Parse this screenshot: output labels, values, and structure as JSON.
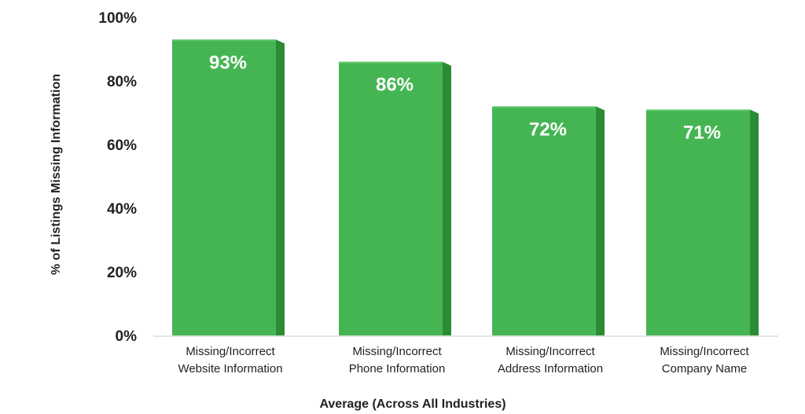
{
  "colors": {
    "bar_front": "#45b553",
    "bar_side": "#2c8c35",
    "bar_top": "#5ec66a",
    "axis_line": "#e3e3e3",
    "text": "#222222",
    "label_on_bar": "#ffffff"
  },
  "chart_data": {
    "type": "bar",
    "categories": [
      [
        "Missing/Incorrect",
        "Website Information"
      ],
      [
        "Missing/Incorrect",
        "Phone Information"
      ],
      [
        "Missing/Incorrect",
        "Address Information"
      ],
      [
        "Missing/Incorrect",
        "Company Name"
      ]
    ],
    "values": [
      93,
      86,
      72,
      71
    ],
    "data_labels": [
      "93%",
      "86%",
      "72%",
      "71%"
    ],
    "title": "",
    "xlabel": "Average (Across All Industries)",
    "ylabel": "% of Listings Missing Information",
    "ylim": [
      0,
      100
    ],
    "yticks": [
      0,
      20,
      40,
      60,
      80,
      100
    ],
    "ytick_labels": [
      "0%",
      "20%",
      "40%",
      "60%",
      "80%",
      "100%"
    ],
    "grid": false,
    "legend": "none"
  }
}
